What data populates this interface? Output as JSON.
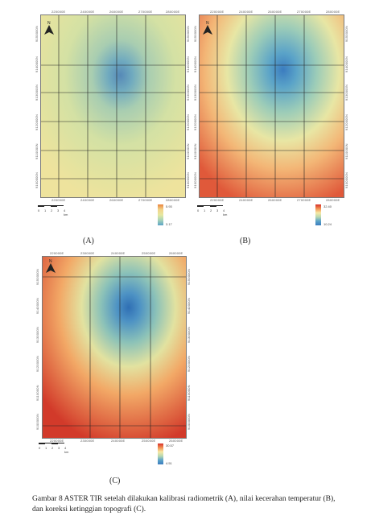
{
  "panels": [
    {
      "id": "A",
      "label": "(A)",
      "north": "N",
      "x_ticks_top": [
        "220000E",
        "240000E",
        "260000E",
        "270000E",
        "280000E"
      ],
      "x_ticks_bottom": [
        "220000E",
        "240000E",
        "260000E",
        "270000E",
        "280000E"
      ],
      "y_ticks": [
        "9150000N",
        "9140000N",
        "9130000N",
        "9120000N",
        "9110000N",
        "9100000N"
      ],
      "scale_labels": [
        "0",
        "1",
        "2",
        "3",
        "4 km"
      ],
      "legend_max": "5.93",
      "legend_min": "3.17",
      "palette": "yellow-green"
    },
    {
      "id": "B",
      "label": "(B)",
      "north": "N",
      "x_ticks_top": [
        "220000E",
        "240000E",
        "260000E",
        "270000E",
        "280000E"
      ],
      "x_ticks_bottom": [
        "220000E",
        "240000E",
        "260000E",
        "270000E",
        "280000E"
      ],
      "y_ticks": [
        "9150000N",
        "9140000N",
        "9130000N",
        "9120000N",
        "9110000N",
        "9100000N"
      ],
      "scale_labels": [
        "0",
        "1",
        "2",
        "3",
        "4 km"
      ],
      "legend_max": "32.40",
      "legend_min": "10.24",
      "palette": "warm"
    },
    {
      "id": "C",
      "label": "(C)",
      "north": "N",
      "x_ticks_top": [
        "220000E",
        "230000E",
        "240000E",
        "250000E",
        "260000E"
      ],
      "x_ticks_bottom": [
        "220000E",
        "230000E",
        "240000E",
        "250000E",
        "260000E"
      ],
      "y_ticks": [
        "9150000N",
        "9140000N",
        "9130000N",
        "9120000N",
        "9110000N",
        "9100000N"
      ],
      "scale_labels": [
        "0",
        "1",
        "2",
        "3",
        "4 km"
      ],
      "legend_max": "30.57",
      "legend_min": "4.51",
      "palette": "warm-strong"
    }
  ],
  "colors": {
    "hot": "#d7312b",
    "warm": "#f19153",
    "mid": "#f7e9a4",
    "cool": "#8fc3b6",
    "cold": "#3b7cbf",
    "grid": "#222222"
  },
  "caption": "Gambar 8 ASTER TIR setelah dilakukan kalibrasi radiometrik (A), nilai kecerahan temperatur (B), dan koreksi ketinggian topografi (C)."
}
